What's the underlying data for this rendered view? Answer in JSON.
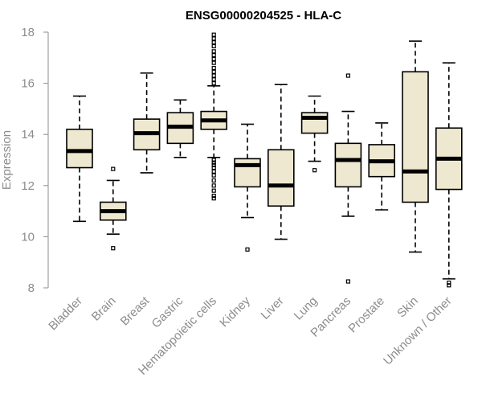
{
  "chart_data": {
    "type": "boxplot",
    "title": "ENSG00000204525 - HLA-C",
    "xlabel": "",
    "ylabel": "Expression",
    "ylim": [
      8,
      18
    ],
    "yticks": [
      8,
      10,
      12,
      14,
      16,
      18
    ],
    "box_fill": "#efe8d1",
    "categories": [
      "Bladder",
      "Brain",
      "Breast",
      "Gastric",
      "Hematopoietic cells",
      "Kidney",
      "Liver",
      "Lung",
      "Pancreas",
      "Prostate",
      "Skin",
      "Unknown / Other"
    ],
    "boxes": [
      {
        "category": "Bladder",
        "whisker_low": 10.6,
        "q1": 12.7,
        "median": 13.35,
        "q3": 14.2,
        "whisker_high": 15.5,
        "outliers": []
      },
      {
        "category": "Brain",
        "whisker_low": 10.1,
        "q1": 10.65,
        "median": 11.0,
        "q3": 11.35,
        "whisker_high": 12.2,
        "outliers": [
          9.55,
          12.65
        ]
      },
      {
        "category": "Breast",
        "whisker_low": 12.5,
        "q1": 13.4,
        "median": 14.05,
        "q3": 14.6,
        "whisker_high": 16.4,
        "outliers": []
      },
      {
        "category": "Gastric",
        "whisker_low": 13.1,
        "q1": 13.65,
        "median": 14.3,
        "q3": 14.85,
        "whisker_high": 15.35,
        "outliers": []
      },
      {
        "category": "Hematopoietic cells",
        "whisker_low": 13.1,
        "q1": 14.2,
        "median": 14.55,
        "q3": 14.9,
        "whisker_high": 15.9,
        "outliers": [
          11.5,
          11.6,
          11.8,
          12.0,
          12.2,
          12.4,
          12.55,
          12.7,
          12.8,
          12.9,
          13.0,
          16.0,
          16.15,
          16.3,
          16.45,
          16.6,
          16.8,
          16.95,
          17.1,
          17.25,
          17.45,
          17.6,
          17.75,
          17.9
        ]
      },
      {
        "category": "Kidney",
        "whisker_low": 10.75,
        "q1": 11.95,
        "median": 12.8,
        "q3": 13.05,
        "whisker_high": 14.4,
        "outliers": [
          9.5
        ]
      },
      {
        "category": "Liver",
        "whisker_low": 9.9,
        "q1": 11.2,
        "median": 12.0,
        "q3": 13.4,
        "whisker_high": 15.95,
        "outliers": []
      },
      {
        "category": "Lung",
        "whisker_low": 12.95,
        "q1": 14.05,
        "median": 14.65,
        "q3": 14.85,
        "whisker_high": 15.5,
        "outliers": [
          12.6
        ]
      },
      {
        "category": "Pancreas",
        "whisker_low": 10.8,
        "q1": 11.95,
        "median": 13.0,
        "q3": 13.65,
        "whisker_high": 14.9,
        "outliers": [
          8.25,
          16.3
        ]
      },
      {
        "category": "Prostate",
        "whisker_low": 11.05,
        "q1": 12.35,
        "median": 12.95,
        "q3": 13.6,
        "whisker_high": 14.45,
        "outliers": []
      },
      {
        "category": "Skin",
        "whisker_low": 9.4,
        "q1": 11.35,
        "median": 12.55,
        "q3": 16.45,
        "whisker_high": 17.65,
        "outliers": []
      },
      {
        "category": "Unknown / Other",
        "whisker_low": 8.35,
        "q1": 11.85,
        "median": 13.05,
        "q3": 14.25,
        "whisker_high": 16.8,
        "outliers": [
          8.1,
          8.2
        ]
      }
    ]
  }
}
